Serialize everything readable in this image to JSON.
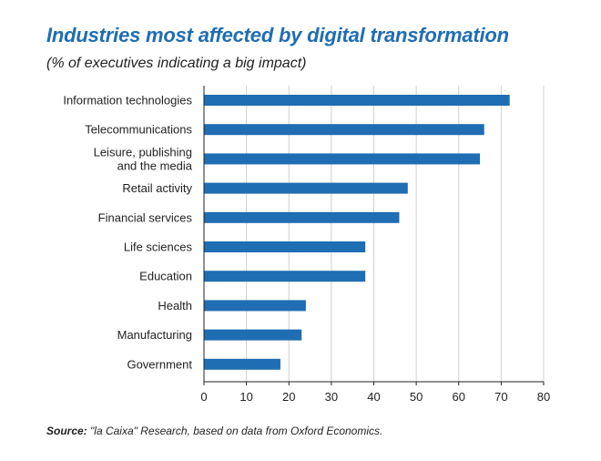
{
  "title": "Industries most affected by digital transformation",
  "subtitle": "(% of executives indicating a big impact)",
  "source_label": "Source:",
  "source_text": " \"la Caixa\" Research, based on data from Oxford Economics.",
  "colors": {
    "title": "#1f6db3",
    "bar": "#1f6db3",
    "grid": "#cfcfcf",
    "axis": "#222222",
    "text": "#222222"
  },
  "chart_data": {
    "type": "bar",
    "orientation": "horizontal",
    "categories": [
      [
        "Information technologies"
      ],
      [
        "Telecommunications"
      ],
      [
        "Leisure, publishing",
        "and the media"
      ],
      [
        "Retail activity"
      ],
      [
        "Financial services"
      ],
      [
        "Life sciences"
      ],
      [
        "Education"
      ],
      [
        "Health"
      ],
      [
        "Manufacturing"
      ],
      [
        "Government"
      ]
    ],
    "values": [
      72,
      66,
      65,
      48,
      46,
      38,
      38,
      24,
      23,
      18
    ],
    "xlim": [
      0,
      80
    ],
    "xticks": [
      0,
      10,
      20,
      30,
      40,
      50,
      60,
      70,
      80
    ],
    "grid": true,
    "xlabel": "",
    "ylabel": ""
  }
}
